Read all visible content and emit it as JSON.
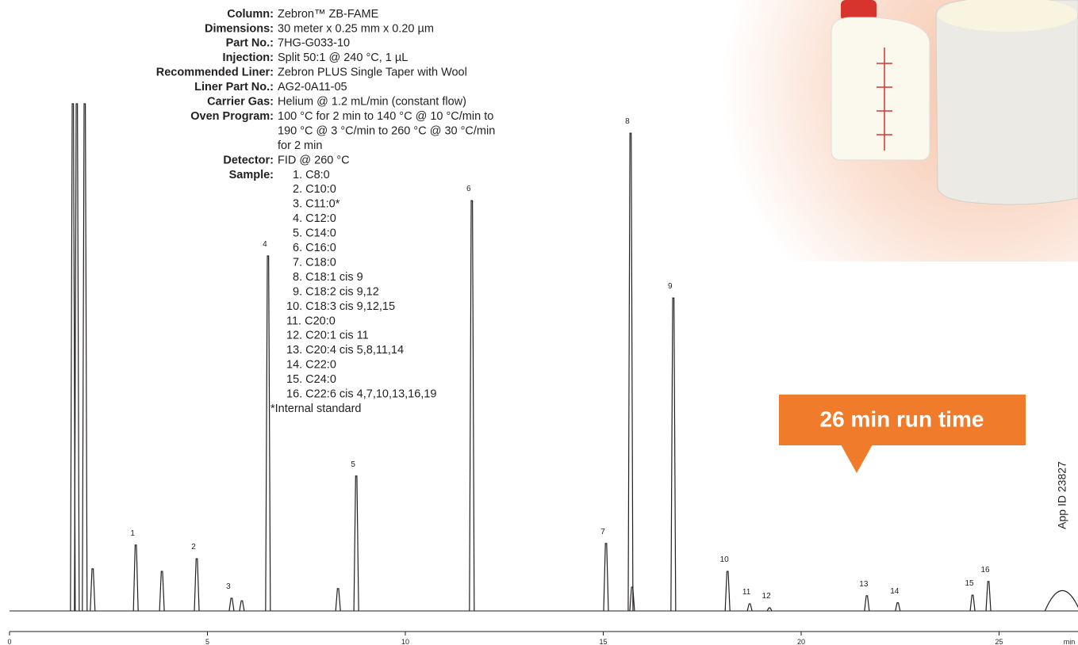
{
  "method": [
    {
      "label": "Column:",
      "value": [
        "Zebron™ ZB-FAME"
      ]
    },
    {
      "label": "Dimensions:",
      "value": [
        "30 meter x 0.25 mm x 0.20 µm"
      ]
    },
    {
      "label": "Part No.:",
      "value": [
        "7HG-G033-10"
      ]
    },
    {
      "label": "Injection:",
      "value": [
        "Split 50:1 @ 240 °C, 1 µL"
      ]
    },
    {
      "label": "Recommended Liner:",
      "value": [
        "Zebron PLUS Single Taper with Wool"
      ]
    },
    {
      "label": "Liner Part No.:",
      "value": [
        "AG2-0A11-05"
      ]
    },
    {
      "label": "Carrier Gas:",
      "value": [
        "Helium @ 1.2 mL/min (constant flow)"
      ]
    },
    {
      "label": "Oven Program:",
      "value": [
        "100 °C for 2 min to 140 °C @ 10 °C/min to",
        "190 °C @ 3 °C/min to 260 °C @ 30 °C/min",
        "for 2 min"
      ]
    },
    {
      "label": "Detector:",
      "value": [
        "FID @ 260 °C"
      ]
    }
  ],
  "sample": {
    "label": "Sample:",
    "items": [
      "1. C8:0",
      "2. C10:0",
      "3. C11:0*",
      "4. C12:0",
      "5. C14:0",
      "6. C16:0",
      "7. C18:0",
      "8. C18:1 cis 9",
      "9. C18:2 cis 9,12",
      "10. C18:3 cis 9,12,15",
      "11. C20:0",
      "12. C20:1 cis 11",
      "13. C20:4 cis 5,8,11,14",
      "14. C22:0",
      "15. C24:0",
      "16. C22:6 cis 4,7,10,13,16,19"
    ],
    "note": "*Internal standard"
  },
  "callout": "26 min run time",
  "app_id": "App ID 23827",
  "chart_data": {
    "type": "chromatogram",
    "x_label": "min",
    "xlim": [
      0,
      27
    ],
    "xticks": [
      0,
      5,
      10,
      15,
      20,
      25
    ],
    "ylim": [
      0,
      100
    ],
    "color": "#231f20",
    "peaks": {
      "labels": [
        "1",
        "2",
        "3",
        "4",
        "5",
        "6",
        "7",
        "8",
        "9",
        "10",
        "11",
        "12",
        "13",
        "14",
        "15",
        "16"
      ],
      "x": [
        3.19,
        4.73,
        5.61,
        6.53,
        8.76,
        11.68,
        15.07,
        15.69,
        16.77,
        18.14,
        18.7,
        19.2,
        21.66,
        22.44,
        24.33,
        24.73
      ],
      "values": [
        13.0,
        10.3,
        2.5,
        70.0,
        26.6,
        80.9,
        13.3,
        94.2,
        61.7,
        7.8,
        1.4,
        0.6,
        3.0,
        1.6,
        3.1,
        5.8
      ]
    },
    "other_peaks": {
      "x": [
        1.6,
        1.7,
        1.9,
        2.1,
        3.85,
        5.87,
        8.3,
        15.73,
        26.6
      ],
      "values": [
        100,
        100,
        100,
        8.3,
        7.8,
        2.0,
        4.4,
        4.7,
        4.0
      ]
    }
  }
}
